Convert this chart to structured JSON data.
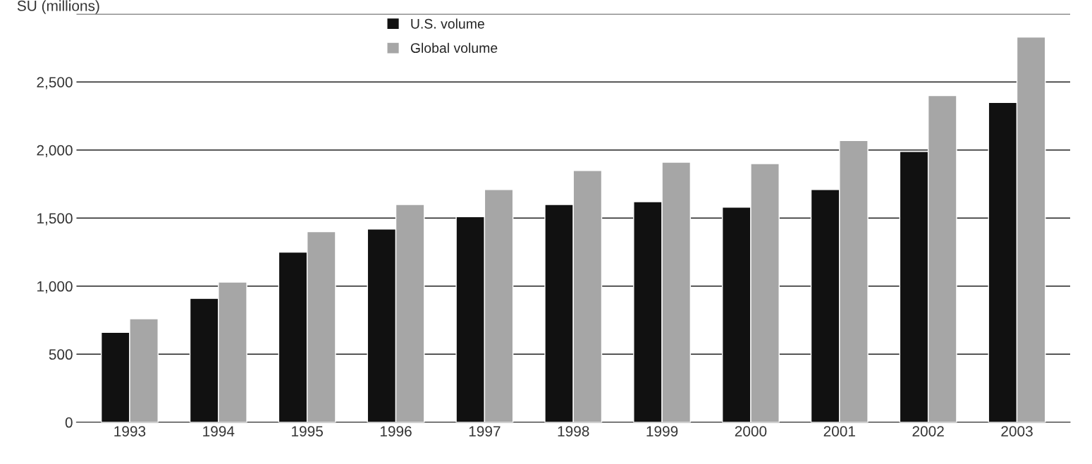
{
  "chart_data": {
    "type": "bar",
    "ylabel": "SU (millions)",
    "categories": [
      "1993",
      "1994",
      "1995",
      "1996",
      "1997",
      "1998",
      "1999",
      "2000",
      "2001",
      "2002",
      "2003"
    ],
    "series": [
      {
        "name": "U.S. volume",
        "color": "#111111",
        "values": [
          660,
          910,
          1250,
          1420,
          1510,
          1600,
          1620,
          1580,
          1710,
          1990,
          2350
        ]
      },
      {
        "name": "Global volume",
        "color": "#a6a6a6",
        "values": [
          760,
          1030,
          1400,
          1600,
          1710,
          1850,
          1910,
          1900,
          2070,
          2400,
          2830
        ]
      }
    ],
    "ylim": [
      0,
      3000
    ],
    "yticks": [
      0,
      {
        "value": 500,
        "label": "500"
      },
      {
        "value": 1000,
        "label": "1,000"
      },
      {
        "value": 1500,
        "label": "1,500"
      },
      {
        "value": 2000,
        "label": "2,000"
      },
      {
        "value": 2500,
        "label": "2,500"
      },
      {
        "value": 3000,
        "label": null
      }
    ],
    "grid": "y",
    "legend": "top left"
  }
}
